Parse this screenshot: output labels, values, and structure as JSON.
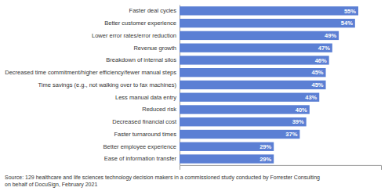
{
  "chart_data": {
    "type": "bar",
    "orientation": "horizontal",
    "categories": [
      "Ease of information transfer",
      "Better employee experience",
      "Faster turnaround times",
      "Decreased financial cost",
      "Reduced risk",
      "Less manual data entry",
      "Time savings (e.g., not walking over to fax machines)",
      "Decreased time commitment/higher efficiency/fewer manual steps",
      "Breakdown of internal silos",
      "Revenue growth",
      "Lower error rates/error reduction",
      "Better customer experience",
      "Faster deal cycles"
    ],
    "values": [
      29,
      29,
      37,
      39,
      40,
      43,
      45,
      45,
      46,
      47,
      49,
      54,
      55
    ],
    "value_labels": [
      "29%",
      "29%",
      "37%",
      "39%",
      "40%",
      "43%",
      "45%",
      "45%",
      "46%",
      "47%",
      "49%",
      "54%",
      "55%"
    ],
    "data_labels": true,
    "color": "#5b7fd4",
    "xlim": [
      0,
      62
    ],
    "tick_labels": "y",
    "annotations": [
      "Source: 129 healthcare and life sciences technology decision makers in a commissioned study conducted by Forrester Consulting\non behalf of DocuSign, February 2021"
    ]
  }
}
